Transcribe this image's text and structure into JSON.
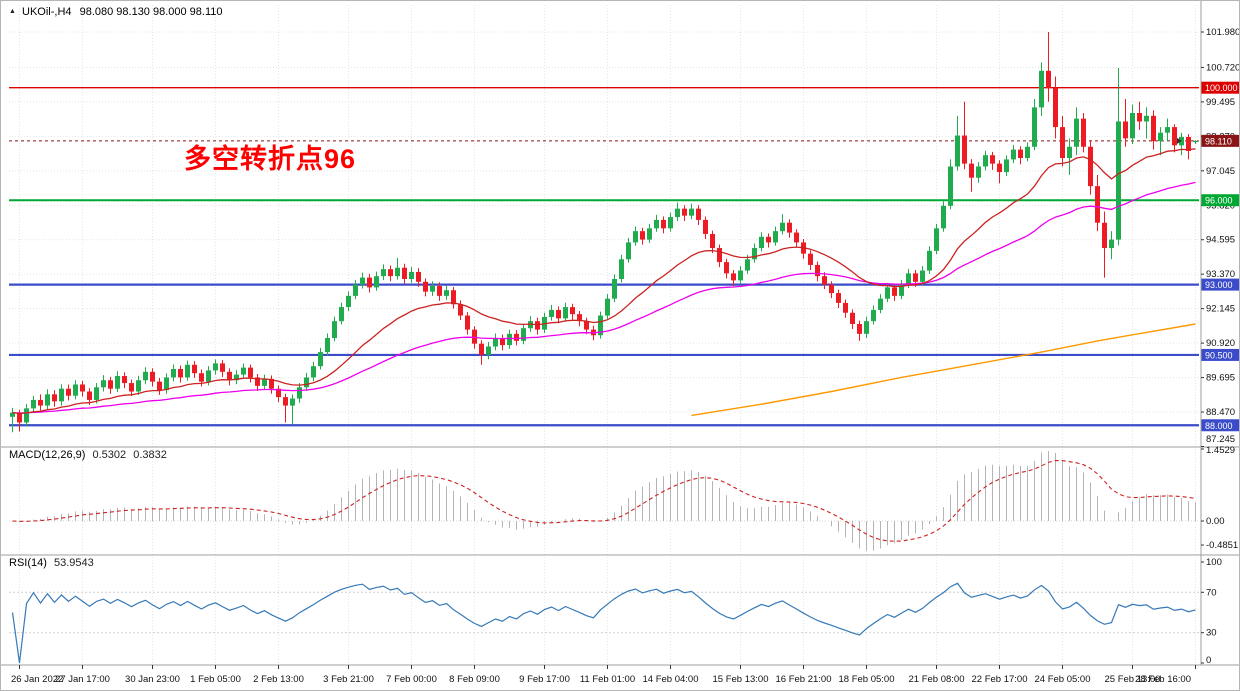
{
  "window": {
    "symbol_tf": "UKOil-,H4",
    "ohlc_text": "98.080 98.130 98.000 98.110"
  },
  "annotation": {
    "text": "多空转折点96",
    "color": "#ff0000"
  },
  "chart_data": {
    "type": "candlestick",
    "symbol": "UKOil-",
    "timeframe": "H4",
    "title": "UKOil-,H4 98.080 98.130 98.000 98.110",
    "bull_color": "#1fab4e",
    "bear_color": "#ed1c24",
    "grid": true,
    "y_ticks": [
      "101.980",
      "100.720",
      "99.495",
      "98.270",
      "97.045",
      "95.820",
      "94.595",
      "93.370",
      "92.145",
      "90.920",
      "89.695",
      "88.470",
      "87.245"
    ],
    "x_ticks": [
      "26 Jan 2022",
      "27 Jan 17:00",
      "30 Jan 23:00",
      "1 Feb 05:00",
      "2 Feb 13:00",
      "3 Feb 21:00",
      "7 Feb 00:00",
      "8 Feb 09:00",
      "9 Feb 17:00",
      "11 Feb 01:00",
      "14 Feb 04:00",
      "15 Feb 13:00",
      "16 Feb 21:00",
      "18 Feb 05:00",
      "21 Feb 08:00",
      "22 Feb 17:00",
      "24 Feb 05:00",
      "25 Feb 13:00",
      "28 Feb 16:00"
    ],
    "levels": [
      {
        "price": 100.0,
        "label": "100.000",
        "color": "#dd0000",
        "width": 1.4
      },
      {
        "price": 96.0,
        "label": "96.000",
        "color": "#00a832",
        "width": 2
      },
      {
        "price": 93.0,
        "label": "93.000",
        "color": "#3b4cca",
        "width": 2.2
      },
      {
        "price": 90.5,
        "label": "90.500",
        "color": "#3b4cca",
        "width": 2.2
      },
      {
        "price": 88.0,
        "label": "88.000",
        "color": "#3b4cca",
        "width": 2.2
      }
    ],
    "current_price": {
      "value": 98.11,
      "label": "98.110",
      "tag_color": "#8a1515"
    },
    "moving_averages": [
      {
        "name": "ma-slow",
        "color": "#ff9900",
        "points": [
          [
            97,
            88.35
          ],
          [
            107,
            88.75
          ],
          [
            117,
            89.2
          ],
          [
            127,
            89.7
          ],
          [
            137,
            90.15
          ],
          [
            147,
            90.6
          ],
          [
            155,
            91.0
          ],
          [
            162,
            91.3
          ],
          [
            169,
            91.6
          ]
        ]
      },
      {
        "name": "ema-mid",
        "color": "#ee00ee",
        "period": 55
      },
      {
        "name": "ema-fast",
        "color": "#cc2222",
        "period": 21
      }
    ],
    "indicators": {
      "macd": {
        "label": "MACD(12,26,9)",
        "value_main": "0.5302",
        "value_signal": "0.3832",
        "fast": 12,
        "slow": 26,
        "signal": 9,
        "y_ticks": [
          "1.4529",
          "0.00",
          "-0.4851"
        ],
        "histogram_color": "#b4b4b4",
        "signal_color": "#cc2222"
      },
      "rsi": {
        "label": "RSI(14)",
        "value": "53.9543",
        "period": 14,
        "y_ticks": [
          "100",
          "70",
          "30",
          "0"
        ],
        "levels": [
          70,
          30
        ],
        "line_color": "#3579b8"
      }
    },
    "candles": [
      [
        88.3,
        88.62,
        87.75,
        88.45
      ],
      [
        88.45,
        88.55,
        87.78,
        88.1
      ],
      [
        88.1,
        88.75,
        87.95,
        88.6
      ],
      [
        88.6,
        89.05,
        88.45,
        88.9
      ],
      [
        88.9,
        89.1,
        88.52,
        88.7
      ],
      [
        88.7,
        89.28,
        88.55,
        89.1
      ],
      [
        89.1,
        89.25,
        88.66,
        88.85
      ],
      [
        88.85,
        89.46,
        88.7,
        89.3
      ],
      [
        89.3,
        89.45,
        88.88,
        89.05
      ],
      [
        89.05,
        89.6,
        88.92,
        89.45
      ],
      [
        89.45,
        89.58,
        89.02,
        89.2
      ],
      [
        89.2,
        89.32,
        88.72,
        88.9
      ],
      [
        88.9,
        89.5,
        88.78,
        89.35
      ],
      [
        89.35,
        89.78,
        89.2,
        89.6
      ],
      [
        89.6,
        89.72,
        89.12,
        89.3
      ],
      [
        89.3,
        89.92,
        89.18,
        89.75
      ],
      [
        89.75,
        89.88,
        89.32,
        89.5
      ],
      [
        89.5,
        89.62,
        89.04,
        89.2
      ],
      [
        89.2,
        89.76,
        89.08,
        89.6
      ],
      [
        89.6,
        90.06,
        89.46,
        89.9
      ],
      [
        89.9,
        90.02,
        89.38,
        89.55
      ],
      [
        89.55,
        89.68,
        89.08,
        89.25
      ],
      [
        89.25,
        89.85,
        89.12,
        89.7
      ],
      [
        89.7,
        90.16,
        89.56,
        90.0
      ],
      [
        90.0,
        90.12,
        89.52,
        89.7
      ],
      [
        89.7,
        90.3,
        89.58,
        90.15
      ],
      [
        90.15,
        90.28,
        89.68,
        89.85
      ],
      [
        89.85,
        89.98,
        89.38,
        89.55
      ],
      [
        89.55,
        90.1,
        89.42,
        89.95
      ],
      [
        89.95,
        90.34,
        89.8,
        90.2
      ],
      [
        90.2,
        90.32,
        89.72,
        89.9
      ],
      [
        89.9,
        90.02,
        89.42,
        89.6
      ],
      [
        89.6,
        89.96,
        89.46,
        89.8
      ],
      [
        89.8,
        90.2,
        89.66,
        90.05
      ],
      [
        90.05,
        90.16,
        89.52,
        89.7
      ],
      [
        89.7,
        89.82,
        89.22,
        89.4
      ],
      [
        89.4,
        89.8,
        89.26,
        89.65
      ],
      [
        89.65,
        89.77,
        89.12,
        89.3
      ],
      [
        89.3,
        89.42,
        88.82,
        89.0
      ],
      [
        89.0,
        89.12,
        88.1,
        88.7
      ],
      [
        88.7,
        89.1,
        88.05,
        88.95
      ],
      [
        88.95,
        89.5,
        88.8,
        89.35
      ],
      [
        89.35,
        89.86,
        89.22,
        89.7
      ],
      [
        89.7,
        90.26,
        89.56,
        90.1
      ],
      [
        90.1,
        90.75,
        89.98,
        90.6
      ],
      [
        90.6,
        91.26,
        90.48,
        91.1
      ],
      [
        91.1,
        91.86,
        90.98,
        91.7
      ],
      [
        91.7,
        92.36,
        91.58,
        92.2
      ],
      [
        92.2,
        92.76,
        92.06,
        92.6
      ],
      [
        92.6,
        93.16,
        92.48,
        93.0
      ],
      [
        93.0,
        93.42,
        92.86,
        93.25
      ],
      [
        93.25,
        93.38,
        92.72,
        92.9
      ],
      [
        92.9,
        93.46,
        92.78,
        93.3
      ],
      [
        93.3,
        93.72,
        93.16,
        93.55
      ],
      [
        93.55,
        93.68,
        93.12,
        93.3
      ],
      [
        93.3,
        93.95,
        93.18,
        93.6
      ],
      [
        93.6,
        93.74,
        93.02,
        93.2
      ],
      [
        93.2,
        93.62,
        93.06,
        93.45
      ],
      [
        93.45,
        93.58,
        92.92,
        93.1
      ],
      [
        93.1,
        93.22,
        92.58,
        92.75
      ],
      [
        92.75,
        93.12,
        92.6,
        92.95
      ],
      [
        92.95,
        93.08,
        92.42,
        92.6
      ],
      [
        92.6,
        92.96,
        92.46,
        92.8
      ],
      [
        92.8,
        92.92,
        92.14,
        92.3
      ],
      [
        92.3,
        92.44,
        91.74,
        91.9
      ],
      [
        91.9,
        92.02,
        91.22,
        91.4
      ],
      [
        91.4,
        91.52,
        90.72,
        90.9
      ],
      [
        90.9,
        91.02,
        90.15,
        90.5
      ],
      [
        90.5,
        90.96,
        90.34,
        90.8
      ],
      [
        90.8,
        91.26,
        90.66,
        91.1
      ],
      [
        91.1,
        91.22,
        90.66,
        90.85
      ],
      [
        90.85,
        91.4,
        90.72,
        91.25
      ],
      [
        91.25,
        91.38,
        90.84,
        91.0
      ],
      [
        91.0,
        91.6,
        90.88,
        91.45
      ],
      [
        91.45,
        91.88,
        91.32,
        91.7
      ],
      [
        91.7,
        91.82,
        91.22,
        91.4
      ],
      [
        91.4,
        92.0,
        91.28,
        91.85
      ],
      [
        91.85,
        92.28,
        91.72,
        92.1
      ],
      [
        92.1,
        92.22,
        91.62,
        91.8
      ],
      [
        91.8,
        92.36,
        91.68,
        92.2
      ],
      [
        92.2,
        92.32,
        91.76,
        91.95
      ],
      [
        91.95,
        92.06,
        91.52,
        91.7
      ],
      [
        91.7,
        91.82,
        91.24,
        91.4
      ],
      [
        91.4,
        91.54,
        91.02,
        91.2
      ],
      [
        91.2,
        92.04,
        91.08,
        91.9
      ],
      [
        91.9,
        92.66,
        91.78,
        92.5
      ],
      [
        92.5,
        93.36,
        92.38,
        93.2
      ],
      [
        93.2,
        94.06,
        93.08,
        93.9
      ],
      [
        93.9,
        94.66,
        93.78,
        94.5
      ],
      [
        94.5,
        95.06,
        94.38,
        94.9
      ],
      [
        94.9,
        95.02,
        94.42,
        94.6
      ],
      [
        94.6,
        95.16,
        94.48,
        95.0
      ],
      [
        95.0,
        95.48,
        94.88,
        95.3
      ],
      [
        95.3,
        95.42,
        94.82,
        95.0
      ],
      [
        95.0,
        95.56,
        94.88,
        95.4
      ],
      [
        95.4,
        95.92,
        95.26,
        95.7
      ],
      [
        95.7,
        95.82,
        95.26,
        95.45
      ],
      [
        95.45,
        95.88,
        95.32,
        95.7
      ],
      [
        95.7,
        95.82,
        95.12,
        95.3
      ],
      [
        95.3,
        95.42,
        94.62,
        94.8
      ],
      [
        94.8,
        94.92,
        94.12,
        94.3
      ],
      [
        94.3,
        94.42,
        93.62,
        93.8
      ],
      [
        93.8,
        93.92,
        93.22,
        93.4
      ],
      [
        93.4,
        93.52,
        92.95,
        93.15
      ],
      [
        93.15,
        93.66,
        93.02,
        93.5
      ],
      [
        93.5,
        94.06,
        93.38,
        93.9
      ],
      [
        93.9,
        94.46,
        93.78,
        94.3
      ],
      [
        94.3,
        94.86,
        94.18,
        94.7
      ],
      [
        94.7,
        94.82,
        94.32,
        94.5
      ],
      [
        94.5,
        95.06,
        94.38,
        94.9
      ],
      [
        94.9,
        95.5,
        94.78,
        95.2
      ],
      [
        95.2,
        95.32,
        94.67,
        94.85
      ],
      [
        94.85,
        94.97,
        94.32,
        94.5
      ],
      [
        94.5,
        94.62,
        93.92,
        94.1
      ],
      [
        94.1,
        94.22,
        93.52,
        93.7
      ],
      [
        93.7,
        93.82,
        93.12,
        93.3
      ],
      [
        93.3,
        93.44,
        92.84,
        93.0
      ],
      [
        93.0,
        93.12,
        92.52,
        92.7
      ],
      [
        92.7,
        92.82,
        92.17,
        92.35
      ],
      [
        92.35,
        92.47,
        91.82,
        92.0
      ],
      [
        92.0,
        92.12,
        91.42,
        91.6
      ],
      [
        91.6,
        91.72,
        91.0,
        91.25
      ],
      [
        91.25,
        91.86,
        91.1,
        91.7
      ],
      [
        91.7,
        92.26,
        91.58,
        92.1
      ],
      [
        92.1,
        92.66,
        91.98,
        92.5
      ],
      [
        92.5,
        93.06,
        92.38,
        92.9
      ],
      [
        92.9,
        93.02,
        92.42,
        92.6
      ],
      [
        92.6,
        93.16,
        92.48,
        93.0
      ],
      [
        93.0,
        93.56,
        92.88,
        93.4
      ],
      [
        93.4,
        93.52,
        92.92,
        93.1
      ],
      [
        93.1,
        93.66,
        92.98,
        93.5
      ],
      [
        93.5,
        94.36,
        93.38,
        94.2
      ],
      [
        94.2,
        95.16,
        94.08,
        95.0
      ],
      [
        95.0,
        95.96,
        94.88,
        95.8
      ],
      [
        95.8,
        97.45,
        95.68,
        97.2
      ],
      [
        97.2,
        99.0,
        97.05,
        98.3
      ],
      [
        98.3,
        99.5,
        97.1,
        97.3
      ],
      [
        97.3,
        97.46,
        96.3,
        96.8
      ],
      [
        96.8,
        97.36,
        96.62,
        97.2
      ],
      [
        97.2,
        97.76,
        97.06,
        97.6
      ],
      [
        97.6,
        97.72,
        97.08,
        97.3
      ],
      [
        97.3,
        97.42,
        96.6,
        97.0
      ],
      [
        97.0,
        97.6,
        96.86,
        97.45
      ],
      [
        97.45,
        97.96,
        97.32,
        97.8
      ],
      [
        97.8,
        97.92,
        97.28,
        97.5
      ],
      [
        97.5,
        98.06,
        97.38,
        97.9
      ],
      [
        97.9,
        99.6,
        97.78,
        99.3
      ],
      [
        99.3,
        100.9,
        99.0,
        100.6
      ],
      [
        100.6,
        101.98,
        99.5,
        100.0
      ],
      [
        100.0,
        100.4,
        98.2,
        98.6
      ],
      [
        98.6,
        99.0,
        97.2,
        97.5
      ],
      [
        97.5,
        98.2,
        96.9,
        97.9
      ],
      [
        97.9,
        99.3,
        97.6,
        98.9
      ],
      [
        98.9,
        99.1,
        97.7,
        97.9
      ],
      [
        97.9,
        98.1,
        96.2,
        96.5
      ],
      [
        96.5,
        96.9,
        94.9,
        95.2
      ],
      [
        95.2,
        95.6,
        93.25,
        94.3
      ],
      [
        94.3,
        94.9,
        93.9,
        94.6
      ],
      [
        94.6,
        100.7,
        94.4,
        98.8
      ],
      [
        98.8,
        99.6,
        97.9,
        98.2
      ],
      [
        98.2,
        99.4,
        98.0,
        99.1
      ],
      [
        99.1,
        99.5,
        98.5,
        98.8
      ],
      [
        98.8,
        99.3,
        98.2,
        99.0
      ],
      [
        99.0,
        99.2,
        97.8,
        98.1
      ],
      [
        98.1,
        98.6,
        97.6,
        98.4
      ],
      [
        98.4,
        98.9,
        98.1,
        98.6
      ],
      [
        98.6,
        98.7,
        97.7,
        97.95
      ],
      [
        97.95,
        98.4,
        97.6,
        98.25
      ],
      [
        98.25,
        98.35,
        97.45,
        97.75
      ],
      [
        98.08,
        98.13,
        98.0,
        98.11
      ]
    ]
  }
}
